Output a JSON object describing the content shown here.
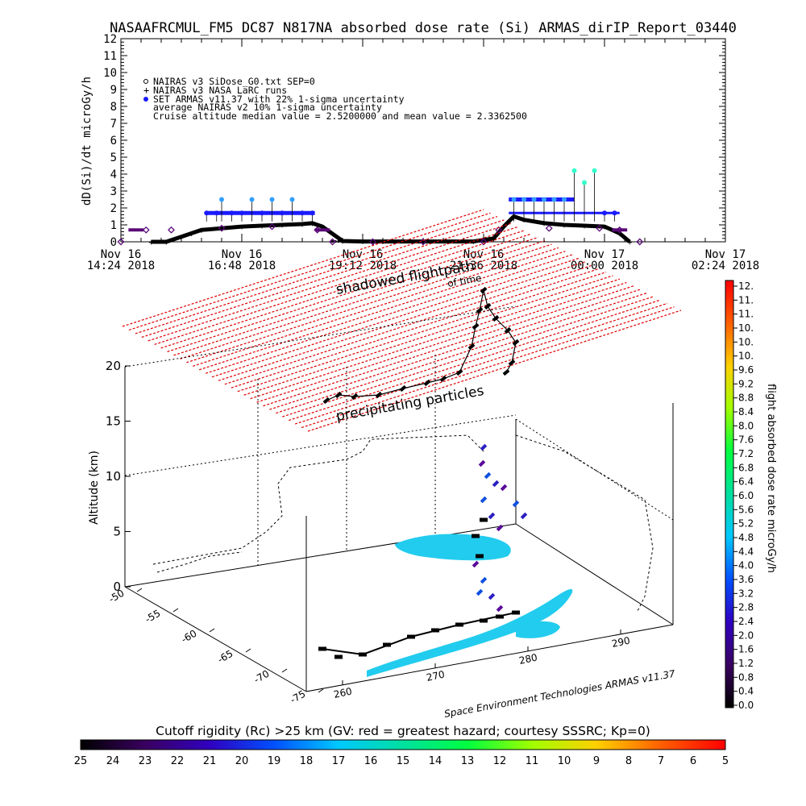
{
  "title": "NASAAFRCMUL_FM5 DC87 N817NA absorbed dose rate (Si) ARMAS_dirIP_Report_03440",
  "top_chart": {
    "ylabel": "dD(Si)/dt microGy/h",
    "yticks": [
      "0",
      "1",
      "2",
      "3",
      "4",
      "5",
      "6",
      "7",
      "8",
      "9",
      "10",
      "11",
      "12"
    ],
    "xticks": [
      {
        "line1": "Nov 16",
        "line2": "14:24 2018"
      },
      {
        "line1": "Nov 16",
        "line2": "16:48 2018"
      },
      {
        "line1": "Nov 16",
        "line2": "19:12 2018"
      },
      {
        "line1": "Nov 16",
        "line2": "21:36 2018"
      },
      {
        "line1": "Nov 17",
        "line2": "00:00 2018"
      },
      {
        "line1": "Nov 17",
        "line2": "02:24 2018"
      }
    ],
    "legend": [
      "NAIRAS v3 SiDose_G0.txt SEP=0",
      "NAIRAS v3 NASA LaRC runs",
      "SET ARMAS v11.37 with 22% 1-sigma uncertainty",
      "average NAIRAS v2 10% 1-sigma uncertainty",
      "Cruise altitude median value = 2.5200000 and mean value = 2.3362500"
    ],
    "of_time": "of time"
  },
  "chart_data": {
    "type": "scatter",
    "x_unit": "hours since Nov 16 14:24 2018",
    "xlim": [
      0,
      12
    ],
    "ylim": [
      0,
      12
    ],
    "series": [
      {
        "name": "NAIRAS v3 NASA LaRC runs",
        "x": [
          0.6,
          0.9,
          1.2,
          1.4,
          1.6,
          2.0,
          2.4,
          2.8,
          3.2,
          3.6,
          3.8,
          4.0,
          4.4,
          4.8,
          5.2,
          6.0,
          7.0,
          7.4,
          7.6,
          7.8,
          8.0,
          8.4,
          8.8,
          9.2,
          9.6,
          9.9,
          10.1
        ],
        "y": [
          0.0,
          0.0,
          0.3,
          0.5,
          0.7,
          0.8,
          0.9,
          0.95,
          1.0,
          1.05,
          1.1,
          0.9,
          0.05,
          0.02,
          0.02,
          0.02,
          0.02,
          0.2,
          0.9,
          1.5,
          1.3,
          1.1,
          1.0,
          0.95,
          0.9,
          0.5,
          0.0
        ]
      },
      {
        "name": "SET ARMAS v11.37 with 22% 1-sigma uncertainty",
        "x": [
          1.7,
          1.9,
          2.0,
          2.2,
          2.4,
          2.6,
          2.8,
          3.0,
          3.2,
          3.4,
          3.6,
          3.8,
          7.8,
          8.0,
          8.2,
          8.4,
          8.6,
          8.8,
          9.0,
          9.2,
          9.4,
          9.6,
          9.8
        ],
        "y": [
          1.7,
          1.7,
          2.5,
          1.7,
          1.7,
          2.5,
          1.7,
          2.5,
          1.7,
          2.5,
          1.7,
          1.7,
          2.5,
          2.5,
          2.5,
          2.5,
          2.5,
          2.5,
          4.2,
          3.5,
          4.2,
          1.7,
          1.7
        ]
      },
      {
        "name": "NAIRAS v3 SiDose_G0.txt SEP=0",
        "x": [
          0.0,
          0.5,
          1.0,
          2.0,
          3.0,
          3.9,
          4.2,
          5.0,
          6.0,
          7.2,
          7.5,
          8.5,
          9.5,
          9.9,
          10.3
        ],
        "y": [
          0.0,
          0.7,
          0.7,
          0.8,
          0.9,
          0.7,
          0.0,
          0.0,
          0.0,
          0.0,
          0.7,
          0.8,
          0.8,
          0.7,
          0.0
        ]
      }
    ]
  },
  "map3d": {
    "labels": {
      "shadowed": "shadowed flightpath",
      "precip": "precipitating particles",
      "zlabel": "Altitude (km)",
      "credit": "Space Environment Technologies ARMAS v11.37"
    },
    "zticks": [
      "0",
      "5",
      "10",
      "15",
      "20"
    ],
    "lat_ticks": [
      "-50",
      "-55",
      "-60",
      "-65",
      "-70",
      "-75"
    ],
    "lon_ticks": [
      "260",
      "270",
      "280",
      "290"
    ]
  },
  "dose_colorbar": {
    "label": "flight absorbed dose rate microGy/h",
    "ticks": [
      "12.",
      "11.",
      "11.",
      "10.",
      "10.",
      "10.",
      "9.6",
      "9.2",
      "8.8",
      "8.4",
      "8.0",
      "7.6",
      "7.2",
      "6.8",
      "6.4",
      "6.0",
      "5.6",
      "5.2",
      "4.8",
      "4.4",
      "4.0",
      "3.6",
      "3.2",
      "2.8",
      "2.4",
      "2.0",
      "1.6",
      "1.2",
      "0.8",
      "0.4",
      "0.0"
    ]
  },
  "rc_colorbar": {
    "label": "Cutoff rigidity (Rc) >25 km (GV: red = greatest hazard; courtesy SSSRC; Kp=0)",
    "ticks": [
      "25",
      "24",
      "23",
      "22",
      "21",
      "20",
      "19",
      "18",
      "17",
      "16",
      "15",
      "14",
      "13",
      "12",
      "11",
      "10",
      "9",
      "8",
      "7",
      "6",
      "5"
    ]
  },
  "colors": {
    "armas_blue": "#1a1aff",
    "armas_light": "#33a0ff",
    "armas_cyan": "#33ffcc",
    "nairas_black": "#000000",
    "nairas_purple": "#5a0a78",
    "red_dash": "#e00000",
    "footprint_cyan": "#22ccee"
  }
}
